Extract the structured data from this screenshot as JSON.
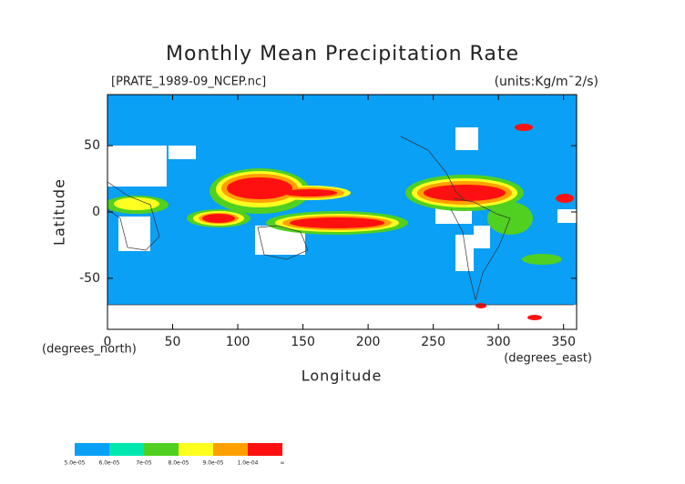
{
  "chart_data": {
    "type": "map",
    "title": "Monthly Mean Precipitation Rate",
    "subtitle_left": "[PRATE_1989-09_NCEP.nc]",
    "subtitle_right": "(units:Kg/m¯2/s)",
    "x_label": "Longitude",
    "y_label": "Latitude",
    "x_units": "(degrees_east)",
    "y_units": "(degrees_north)",
    "xlim": [
      0,
      360
    ],
    "ylim": [
      -88.5,
      88.5
    ],
    "xticks": [
      0,
      50,
      100,
      150,
      200,
      250,
      300,
      350
    ],
    "yticks": [
      -50,
      0,
      50
    ],
    "colorbar": {
      "labels": [
        "5.0e-05",
        "6.0e-05",
        "7e-05",
        "8.0e-05",
        "9.0e-05",
        "1.0e-04",
        "∞"
      ],
      "colors": [
        "#0aa0f5",
        "#00e8b0",
        "#50d020",
        "#ffff20",
        "#ffa000",
        "#ff1010"
      ]
    }
  }
}
